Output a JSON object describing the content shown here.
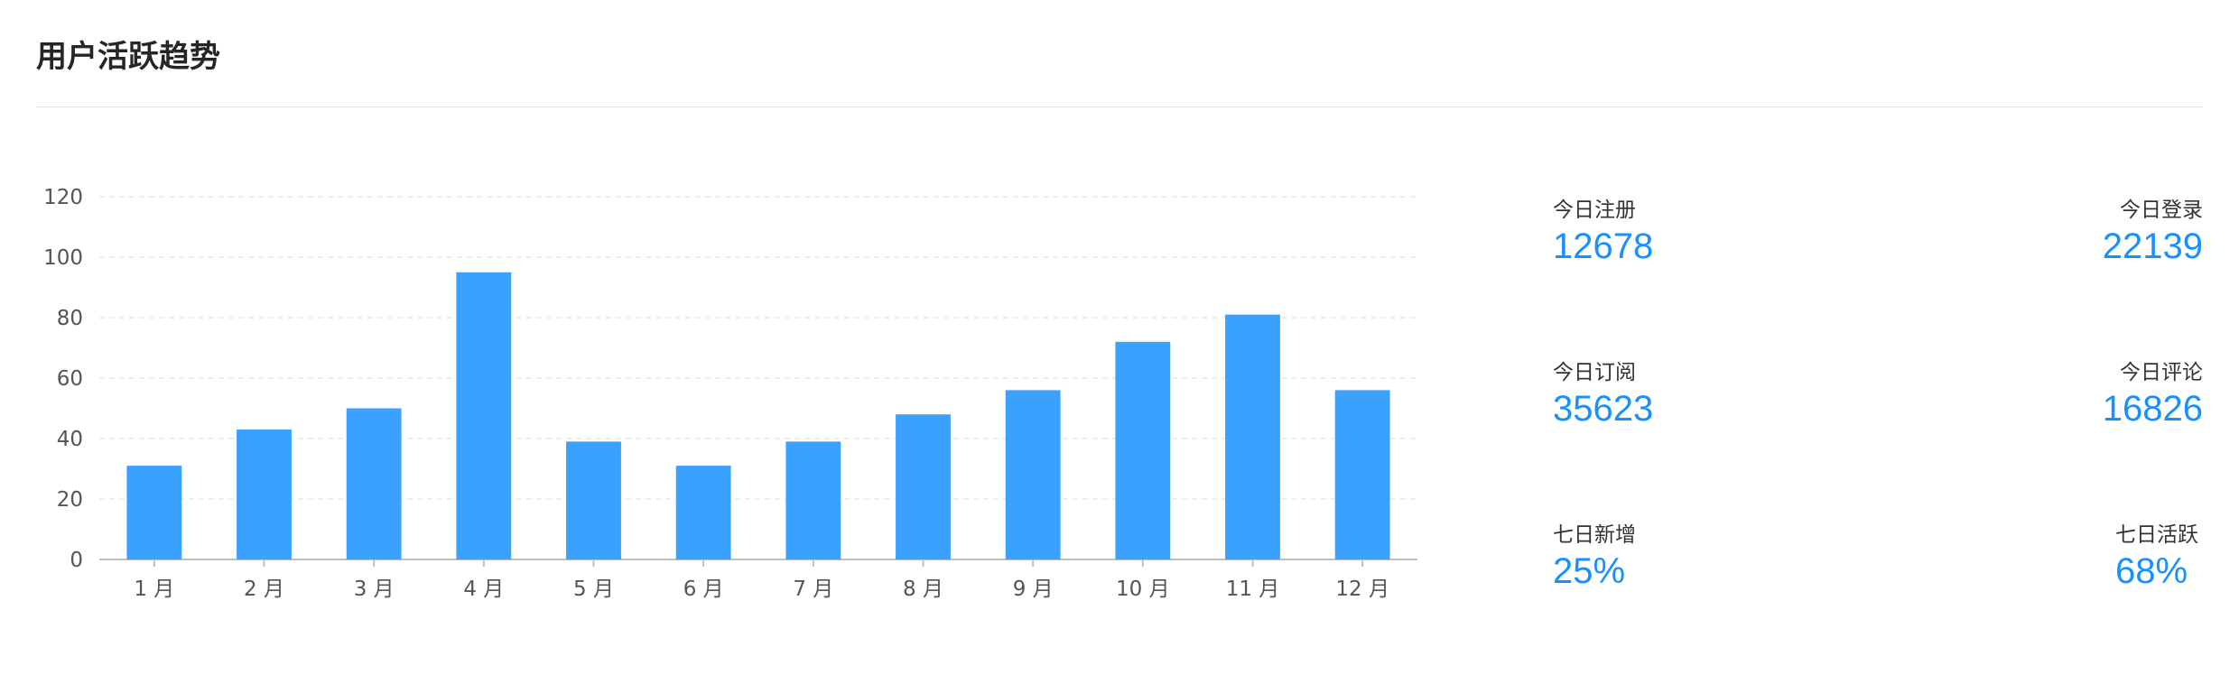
{
  "card": {
    "title": "用户活跃趋势"
  },
  "chart_data": {
    "type": "bar",
    "categories": [
      "1 月",
      "2 月",
      "3 月",
      "4 月",
      "5 月",
      "6 月",
      "7 月",
      "8 月",
      "9 月",
      "10 月",
      "11 月",
      "12 月"
    ],
    "values": [
      31,
      43,
      50,
      95,
      39,
      31,
      39,
      48,
      56,
      72,
      81,
      56
    ],
    "title": "",
    "xlabel": "",
    "ylabel": "",
    "ylim": [
      0,
      120
    ],
    "yticks": [
      0,
      20,
      40,
      60,
      80,
      100,
      120
    ],
    "grid": true,
    "bar_color": "#3ba1ff"
  },
  "stats": [
    {
      "label": "今日注册",
      "value": "12678"
    },
    {
      "label": "今日登录",
      "value": "22139"
    },
    {
      "label": "今日订阅",
      "value": "35623"
    },
    {
      "label": "今日评论",
      "value": "16826"
    },
    {
      "label": "七日新增",
      "value": "25%"
    },
    {
      "label": "七日活跃",
      "value": "68%"
    }
  ],
  "colors": {
    "accent": "#1890ff",
    "bar": "#3ba1ff",
    "grid": "#e8e8e8",
    "axis": "#bfbfbf"
  }
}
